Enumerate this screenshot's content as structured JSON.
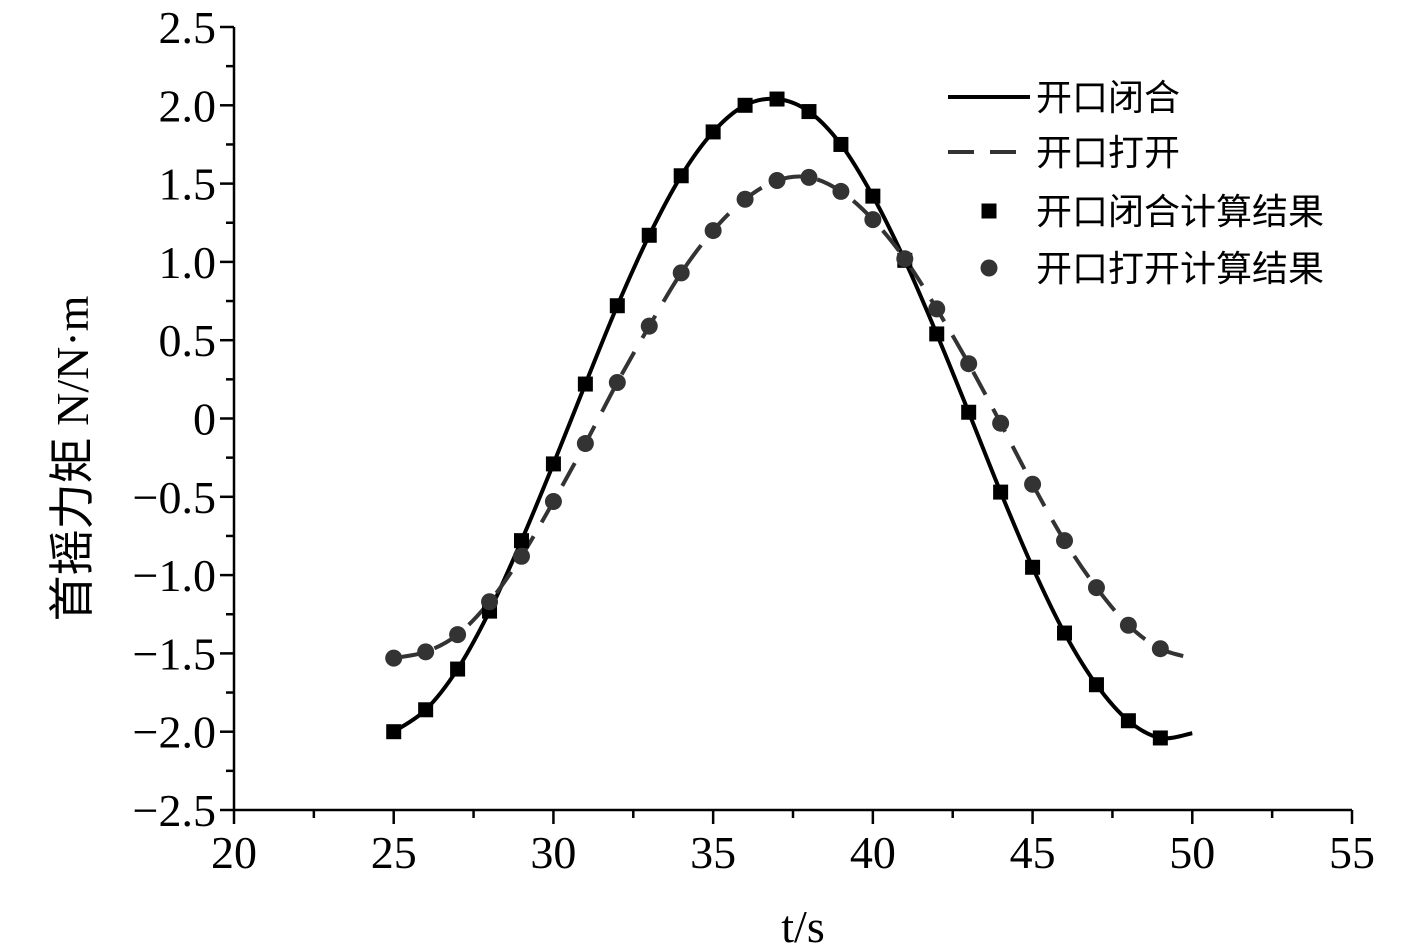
{
  "chart_data": {
    "type": "line",
    "title": "",
    "xlabel": "t/s",
    "ylabel": "首摇力矩 N/N·m",
    "xlim": [
      20,
      55
    ],
    "ylim": [
      -2.5,
      2.5
    ],
    "x_ticks": [
      "20",
      "25",
      "30",
      "35",
      "40",
      "45",
      "50",
      "55"
    ],
    "y_ticks": [
      "−2.5",
      "−2.0",
      "−1.5",
      "−1.0",
      "−0.5",
      "0",
      "0.5",
      "1.0",
      "1.5",
      "2.0",
      "2.5"
    ],
    "grid": false,
    "legend_position": "top-right",
    "series": [
      {
        "name": "开口闭合",
        "style": "solid-line",
        "color": "#000000",
        "x": [
          25,
          26,
          27,
          28,
          29,
          30,
          31,
          32,
          33,
          34,
          35,
          36,
          37,
          38,
          39,
          40,
          41,
          42,
          43,
          44,
          45,
          46,
          47,
          48,
          49,
          50
        ],
        "y": [
          -2.0,
          -1.86,
          -1.6,
          -1.23,
          -0.78,
          -0.29,
          0.22,
          0.72,
          1.17,
          1.55,
          1.83,
          2.0,
          2.04,
          1.96,
          1.75,
          1.42,
          1.01,
          0.54,
          0.04,
          -0.47,
          -0.95,
          -1.37,
          -1.7,
          -1.93,
          -2.04,
          -2.01
        ]
      },
      {
        "name": "开口打开",
        "style": "dashed-line",
        "color": "#333333",
        "x": [
          25,
          26,
          27,
          28,
          29,
          30,
          31,
          32,
          33,
          34,
          35,
          36,
          37,
          38,
          39,
          40,
          41,
          42,
          43,
          44,
          45,
          46,
          47,
          48,
          49,
          50
        ],
        "y": [
          -1.53,
          -1.49,
          -1.38,
          -1.17,
          -0.88,
          -0.53,
          -0.16,
          0.23,
          0.59,
          0.93,
          1.2,
          1.4,
          1.52,
          1.54,
          1.45,
          1.27,
          1.02,
          0.7,
          0.35,
          -0.03,
          -0.42,
          -0.78,
          -1.08,
          -1.32,
          -1.47,
          -1.53
        ]
      },
      {
        "name": "开口闭合计算结果",
        "style": "square-markers",
        "color": "#000000",
        "x": [
          25,
          26,
          27,
          28,
          29,
          30,
          31,
          32,
          33,
          34,
          35,
          36,
          37,
          38,
          39,
          40,
          41,
          42,
          43,
          44,
          45,
          46,
          47,
          48,
          49
        ],
        "y": [
          -2.0,
          -1.86,
          -1.6,
          -1.23,
          -0.78,
          -0.29,
          0.22,
          0.72,
          1.17,
          1.55,
          1.83,
          2.0,
          2.04,
          1.96,
          1.75,
          1.42,
          1.01,
          0.54,
          0.04,
          -0.47,
          -0.95,
          -1.37,
          -1.7,
          -1.93,
          -2.04
        ]
      },
      {
        "name": "开口打开计算结果",
        "style": "circle-markers",
        "color": "#333333",
        "x": [
          25,
          26,
          27,
          28,
          29,
          30,
          31,
          32,
          33,
          34,
          35,
          36,
          37,
          38,
          39,
          40,
          41,
          42,
          43,
          44,
          45,
          46,
          47,
          48,
          49
        ],
        "y": [
          -1.53,
          -1.49,
          -1.38,
          -1.17,
          -0.88,
          -0.53,
          -0.16,
          0.23,
          0.59,
          0.93,
          1.2,
          1.4,
          1.52,
          1.54,
          1.45,
          1.27,
          1.02,
          0.7,
          0.35,
          -0.03,
          -0.42,
          -0.78,
          -1.08,
          -1.32,
          -1.47
        ]
      }
    ]
  }
}
